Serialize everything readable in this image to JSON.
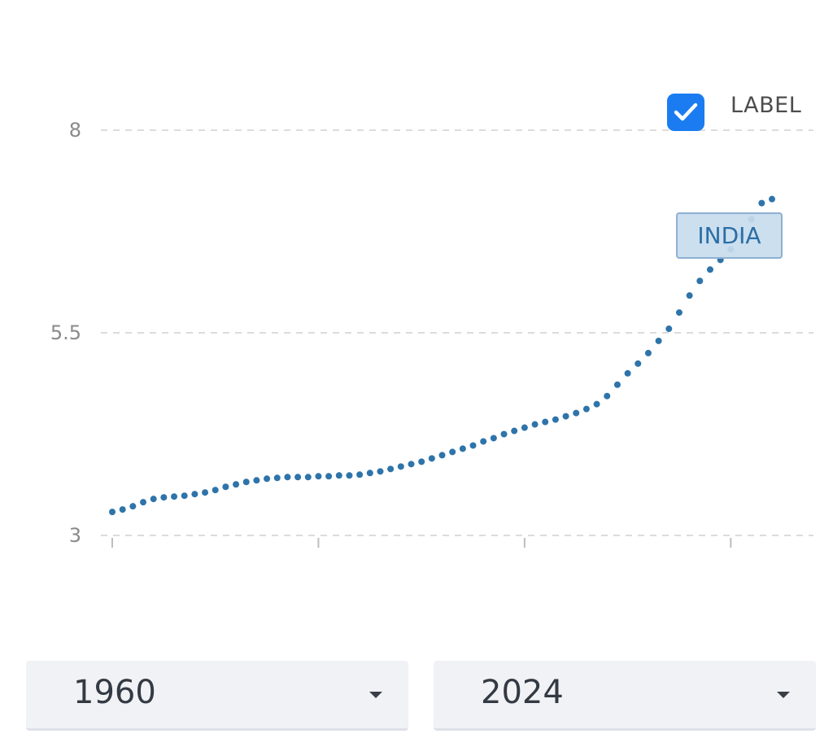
{
  "legend": {
    "label": "LABEL",
    "checked": true,
    "checkbox_color": "#1a7cf0",
    "icon": "checkmark-icon"
  },
  "series_tag": "INDIA",
  "controls": {
    "start_year": "1960",
    "end_year": "2024"
  },
  "chart_data": {
    "type": "line",
    "line_style": "dotted",
    "series": [
      {
        "name": "INDIA",
        "color": "#2e74aa",
        "x": [
          1960,
          1961,
          1962,
          1963,
          1964,
          1965,
          1966,
          1967,
          1968,
          1969,
          1970,
          1971,
          1972,
          1973,
          1974,
          1975,
          1976,
          1977,
          1978,
          1979,
          1980,
          1981,
          1982,
          1983,
          1984,
          1985,
          1986,
          1987,
          1988,
          1989,
          1990,
          1991,
          1992,
          1993,
          1994,
          1995,
          1996,
          1997,
          1998,
          1999,
          2000,
          2001,
          2002,
          2003,
          2004,
          2005,
          2006,
          2007,
          2008,
          2009,
          2010,
          2011,
          2012,
          2013,
          2014,
          2015,
          2016,
          2017,
          2018,
          2019,
          2020,
          2021,
          2022,
          2023,
          2024
        ],
        "values": [
          3.29,
          3.32,
          3.36,
          3.41,
          3.45,
          3.47,
          3.48,
          3.49,
          3.51,
          3.53,
          3.56,
          3.6,
          3.63,
          3.66,
          3.68,
          3.7,
          3.71,
          3.72,
          3.72,
          3.72,
          3.73,
          3.73,
          3.74,
          3.74,
          3.75,
          3.77,
          3.79,
          3.82,
          3.85,
          3.88,
          3.91,
          3.95,
          3.99,
          4.03,
          4.07,
          4.11,
          4.16,
          4.2,
          4.25,
          4.29,
          4.33,
          4.37,
          4.4,
          4.43,
          4.47,
          4.51,
          4.56,
          4.62,
          4.72,
          4.86,
          5.0,
          5.12,
          5.25,
          5.4,
          5.55,
          5.75,
          5.96,
          6.14,
          6.28,
          6.4,
          6.53,
          6.7,
          6.9,
          7.1,
          7.15
        ]
      }
    ],
    "yticks": [
      3,
      5.5,
      8
    ],
    "ylim": [
      3,
      8
    ],
    "xlim": [
      1960,
      2024
    ],
    "xticks": [
      1960,
      1980,
      2000,
      2020
    ],
    "grid": true,
    "legend_position": "top-right"
  }
}
